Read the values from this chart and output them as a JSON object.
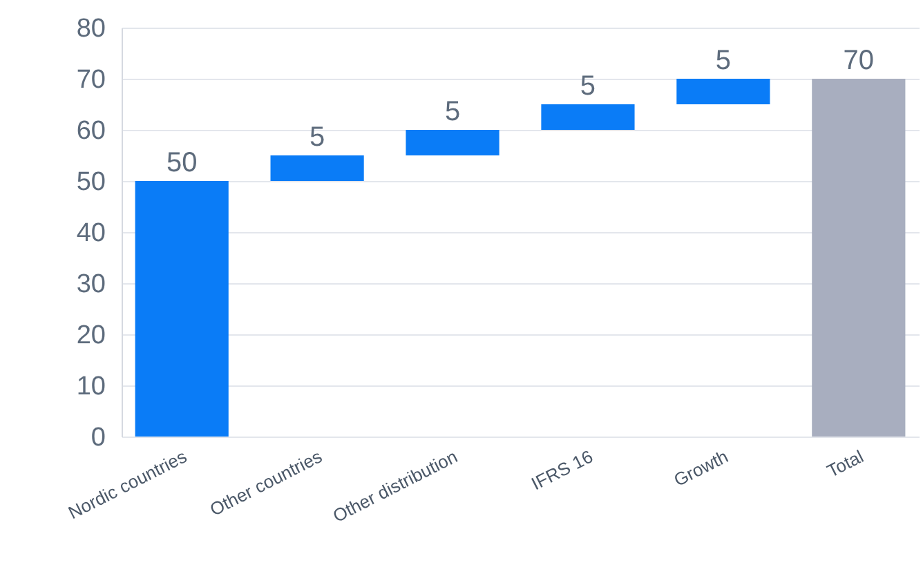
{
  "chart_data": {
    "type": "bar",
    "categories": [
      "Nordic countries",
      "Other countries",
      "Other distribution",
      "IFRS 16",
      "Growth",
      "Total"
    ],
    "values": [
      50,
      5,
      5,
      5,
      5,
      70
    ],
    "base": [
      0,
      50,
      55,
      60,
      65,
      0
    ],
    "colors": [
      "#0a7cf7",
      "#0a7cf7",
      "#0a7cf7",
      "#0a7cf7",
      "#0a7cf7",
      "#a8aebf"
    ],
    "ylim": [
      0,
      80
    ],
    "yticks": [
      0,
      10,
      20,
      30,
      40,
      50,
      60,
      70,
      80
    ],
    "grid": "y",
    "data_labels": true
  }
}
